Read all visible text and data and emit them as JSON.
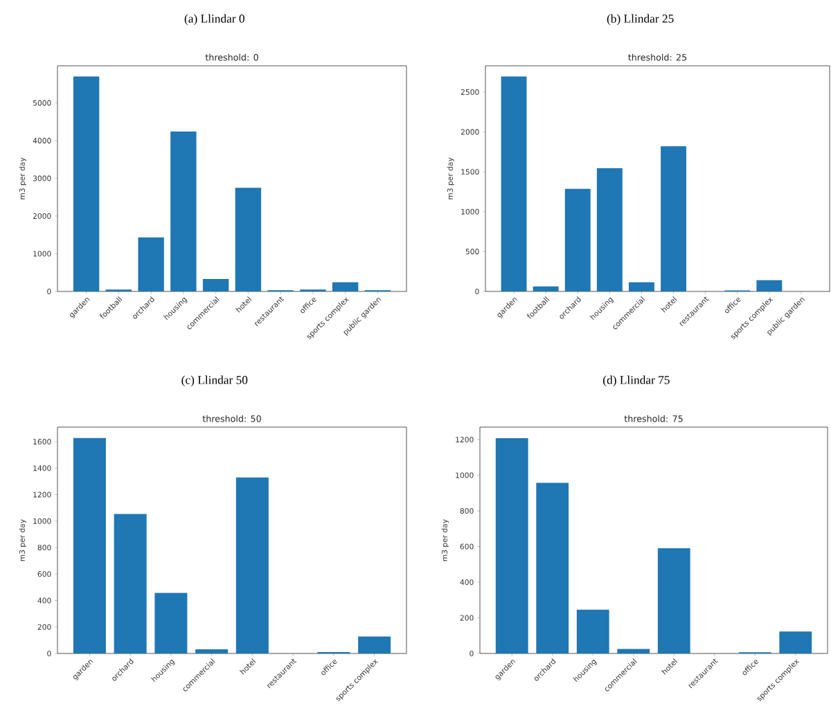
{
  "chart_data": [
    {
      "type": "bar",
      "title": "(a) Llindar 0",
      "subtitle": "threshold: 0",
      "ylabel": "m3 per day",
      "color": "#1f77b4",
      "categories": [
        "garden",
        "football",
        "orchard",
        "housing",
        "commercial",
        "hotel",
        "restaurant",
        "office",
        "sports complex",
        "public garden"
      ],
      "values": [
        5700,
        50,
        1430,
        4240,
        330,
        2750,
        30,
        50,
        245,
        30
      ],
      "ylim": [
        0,
        5985
      ],
      "yticks": [
        0,
        1000,
        2000,
        3000,
        4000,
        5000
      ]
    },
    {
      "type": "bar",
      "title": "(b) Llindar 25",
      "subtitle": "threshold: 25",
      "ylabel": "m3 per day",
      "color": "#1f77b4",
      "categories": [
        "garden",
        "football",
        "orchard",
        "housing",
        "commercial",
        "hotel",
        "restaurant",
        "office",
        "sports complex",
        "public garden"
      ],
      "values": [
        2695,
        63,
        1288,
        1546,
        116,
        1821,
        0,
        13,
        142,
        0
      ],
      "ylim": [
        0,
        2830
      ],
      "yticks": [
        0,
        500,
        1000,
        1500,
        2000,
        2500
      ]
    },
    {
      "type": "bar",
      "title": "(c) Llindar 50",
      "subtitle": "threshold: 50",
      "ylabel": "m3 per day",
      "color": "#1f77b4",
      "categories": [
        "garden",
        "orchard",
        "housing",
        "commercial",
        "hotel",
        "restaurant",
        "office",
        "sports complex"
      ],
      "values": [
        1628,
        1054,
        458,
        32,
        1330,
        0,
        10,
        128
      ],
      "ylim": [
        0,
        1710
      ],
      "yticks": [
        0,
        200,
        400,
        600,
        800,
        1000,
        1200,
        1400,
        1600
      ]
    },
    {
      "type": "bar",
      "title": "(d) Llindar 75",
      "subtitle": "threshold: 75",
      "ylabel": "m3 per day",
      "color": "#1f77b4",
      "categories": [
        "garden",
        "orchard",
        "housing",
        "commercial",
        "hotel",
        "restaurant",
        "office",
        "sports complex"
      ],
      "values": [
        1208,
        957,
        246,
        25,
        590,
        0,
        7,
        123
      ],
      "ylim": [
        0,
        1270
      ],
      "yticks": [
        0,
        200,
        400,
        600,
        800,
        1000,
        1200
      ]
    }
  ]
}
